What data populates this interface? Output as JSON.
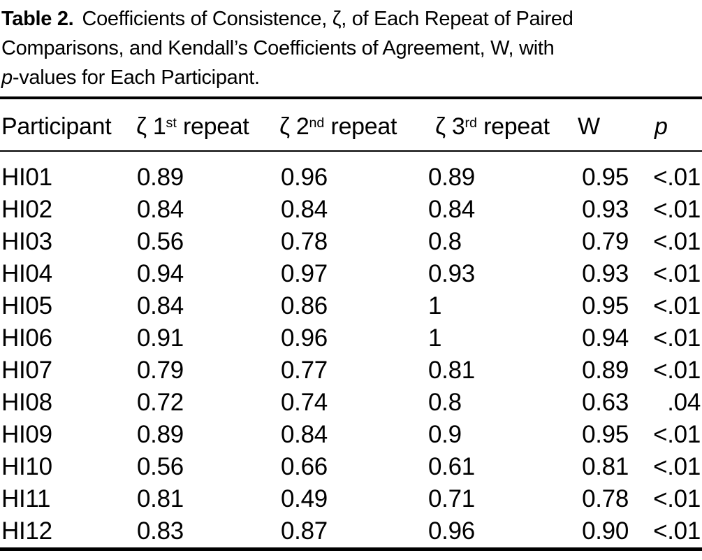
{
  "caption": {
    "label": "Table 2.",
    "line1": "Coefficients of Consistence, ζ, of Each Repeat of Paired",
    "line2": "Comparisons, and Kendall’s Coefficients of Agreement, W, with",
    "line3_italic": "p",
    "line3_rest": "-values for Each Participant."
  },
  "table": {
    "columns": {
      "participant": "Participant",
      "zeta1": {
        "zeta": "ζ",
        "num": "1",
        "sup": "st",
        "rest": "repeat"
      },
      "zeta2": {
        "zeta": "ζ",
        "num": "2",
        "sup": "nd",
        "rest": "repeat"
      },
      "zeta3": {
        "zeta": "ζ",
        "num": "3",
        "sup": "rd",
        "rest": "repeat"
      },
      "w": "W",
      "p": "p"
    },
    "rows": [
      {
        "id": "HI01",
        "r1": "0.89",
        "r2": "0.96",
        "r3": "0.89",
        "w": "0.95",
        "p": "<.01"
      },
      {
        "id": "HI02",
        "r1": "0.84",
        "r2": "0.84",
        "r3": "0.84",
        "w": "0.93",
        "p": "<.01"
      },
      {
        "id": "HI03",
        "r1": "0.56",
        "r2": "0.78",
        "r3": "0.8",
        "w": "0.79",
        "p": "<.01"
      },
      {
        "id": "HI04",
        "r1": "0.94",
        "r2": "0.97",
        "r3": "0.93",
        "w": "0.93",
        "p": "<.01"
      },
      {
        "id": "HI05",
        "r1": "0.84",
        "r2": "0.86",
        "r3": "1",
        "w": "0.95",
        "p": "<.01"
      },
      {
        "id": "HI06",
        "r1": "0.91",
        "r2": "0.96",
        "r3": "1",
        "w": "0.94",
        "p": "<.01"
      },
      {
        "id": "HI07",
        "r1": "0.79",
        "r2": "0.77",
        "r3": "0.81",
        "w": "0.89",
        "p": "<.01"
      },
      {
        "id": "HI08",
        "r1": "0.72",
        "r2": "0.74",
        "r3": "0.8",
        "w": "0.63",
        "p": ".04"
      },
      {
        "id": "HI09",
        "r1": "0.89",
        "r2": "0.84",
        "r3": "0.9",
        "w": "0.95",
        "p": "<.01"
      },
      {
        "id": "HI10",
        "r1": "0.56",
        "r2": "0.66",
        "r3": "0.61",
        "w": "0.81",
        "p": "<.01"
      },
      {
        "id": "HI11",
        "r1": "0.81",
        "r2": "0.49",
        "r3": "0.71",
        "w": "0.78",
        "p": "<.01"
      },
      {
        "id": "HI12",
        "r1": "0.83",
        "r2": "0.87",
        "r3": "0.96",
        "w": "0.90",
        "p": "<.01"
      }
    ],
    "colors": {
      "text": "#000000",
      "background": "#ffffff",
      "rule": "#000000"
    }
  }
}
